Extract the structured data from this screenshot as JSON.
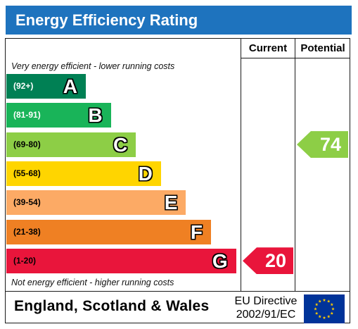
{
  "title": "Energy Efficiency Rating",
  "columns": {
    "current": "Current",
    "potential": "Potential"
  },
  "notes": {
    "top": "Very energy efficient - lower running costs",
    "bottom": "Not energy efficient - higher running costs"
  },
  "chart_data": {
    "type": "bar",
    "bands": [
      {
        "letter": "A",
        "range": "(92+)",
        "color": "#008054",
        "text_color": "#ffffff"
      },
      {
        "letter": "B",
        "range": "(81-91)",
        "color": "#19b459",
        "text_color": "#ffffff"
      },
      {
        "letter": "C",
        "range": "(69-80)",
        "color": "#8dce46",
        "text_color": "#000000"
      },
      {
        "letter": "D",
        "range": "(55-68)",
        "color": "#ffd500",
        "text_color": "#000000"
      },
      {
        "letter": "E",
        "range": "(39-54)",
        "color": "#fcaa65",
        "text_color": "#000000"
      },
      {
        "letter": "F",
        "range": "(21-38)",
        "color": "#ef8023",
        "text_color": "#000000"
      },
      {
        "letter": "G",
        "range": "(1-20)",
        "color": "#e9153b",
        "text_color": "#000000"
      }
    ],
    "current": {
      "value": "20",
      "band": "G",
      "color": "#e9153b"
    },
    "potential": {
      "value": "74",
      "band": "C",
      "color": "#8dce46"
    }
  },
  "footer": {
    "region": "England, Scotland & Wales",
    "directive_line1": "EU Directive",
    "directive_line2": "2002/91/EC"
  }
}
